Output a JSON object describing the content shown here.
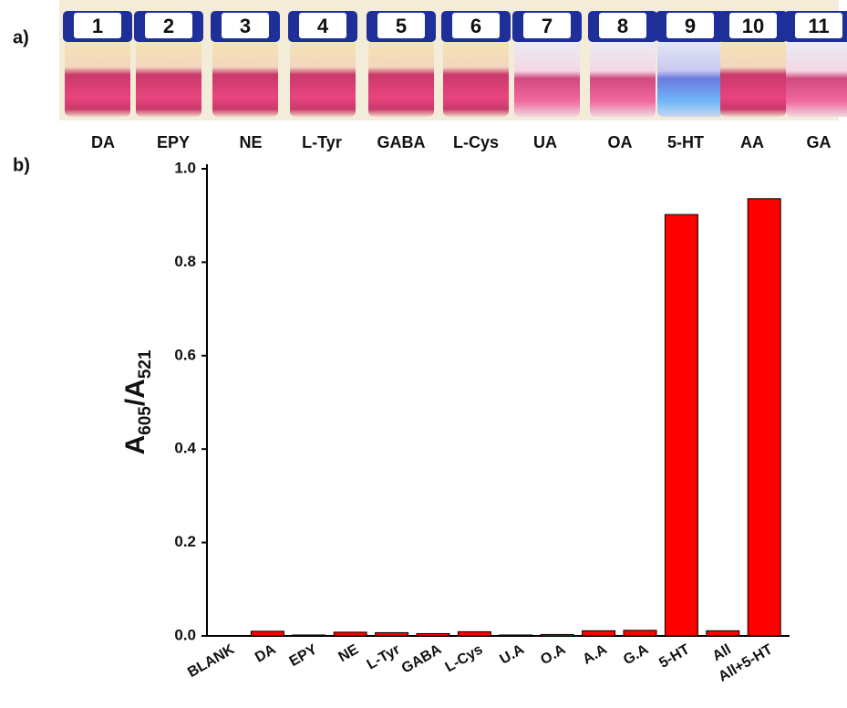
{
  "panel_a": {
    "label": "a)",
    "vials": [
      {
        "number": "1",
        "name": "DA"
      },
      {
        "number": "2",
        "name": "EPY"
      },
      {
        "number": "3",
        "name": "NE"
      },
      {
        "number": "4",
        "name": "L-Tyr"
      },
      {
        "number": "5",
        "name": "GABA"
      },
      {
        "number": "6",
        "name": "L-Cys"
      },
      {
        "number": "7",
        "name": "UA"
      },
      {
        "number": "8",
        "name": "OA"
      },
      {
        "number": "9",
        "name": "5-HT"
      },
      {
        "number": "10",
        "name": "AA"
      },
      {
        "number": "11",
        "name": "GA"
      }
    ]
  },
  "chart_data": {
    "type": "bar",
    "panel_label": "b)",
    "ylabel_parts": [
      "A",
      "605",
      "/A",
      "521"
    ],
    "categories": [
      "BLANK",
      "DA",
      "EPY",
      "NE",
      "L-Tyr",
      "GABA",
      "L-Cys",
      "U.A",
      "O.A",
      "A.A",
      "G.A",
      "5-HT",
      "All",
      "All+5-HT"
    ],
    "values": [
      0,
      0.01,
      0.002,
      0.008,
      0.007,
      0.005,
      0.009,
      0.002,
      0.003,
      0.011,
      0.012,
      0.902,
      0.011,
      0.936
    ],
    "color": "#ff0000",
    "ylim": [
      0,
      1.0
    ],
    "yticks": [
      {
        "value": 0,
        "label": "0.0"
      },
      0.2,
      0.4,
      0.6,
      0.8,
      {
        "value": 1,
        "label": "1.0"
      }
    ]
  }
}
